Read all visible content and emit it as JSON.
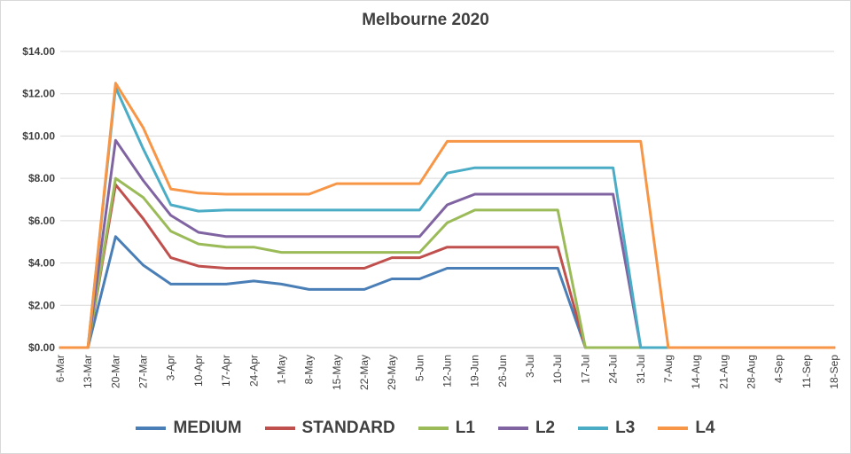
{
  "chart_data": {
    "type": "line",
    "title": "Melbourne 2020",
    "xlabel": "",
    "ylabel": "",
    "ylim": [
      0,
      14
    ],
    "yticks": [
      "$0.00",
      "$2.00",
      "$4.00",
      "$6.00",
      "$8.00",
      "$10.00",
      "$12.00",
      "$14.00"
    ],
    "ytick_values": [
      0,
      2,
      4,
      6,
      8,
      10,
      12,
      14
    ],
    "grid": true,
    "legend_position": "bottom",
    "categories": [
      "6-Mar",
      "13-Mar",
      "20-Mar",
      "27-Mar",
      "3-Apr",
      "10-Apr",
      "17-Apr",
      "24-Apr",
      "1-May",
      "8-May",
      "15-May",
      "22-May",
      "29-May",
      "5-Jun",
      "12-Jun",
      "19-Jun",
      "26-Jun",
      "3-Jul",
      "10-Jul",
      "17-Jul",
      "24-Jul",
      "31-Jul",
      "7-Aug",
      "14-Aug",
      "21-Aug",
      "28-Aug",
      "4-Sep",
      "11-Sep",
      "18-Sep"
    ],
    "series": [
      {
        "name": "MEDIUM",
        "color": "#4a7eb6",
        "values": [
          0,
          0,
          5.25,
          3.9,
          3.0,
          3.0,
          3.0,
          3.15,
          3.0,
          2.75,
          2.75,
          2.75,
          3.25,
          3.25,
          3.75,
          3.75,
          3.75,
          3.75,
          3.75,
          0,
          0,
          0,
          0,
          0,
          0,
          0,
          0,
          0,
          0
        ]
      },
      {
        "name": "STANDARD",
        "color": "#c0504d",
        "values": [
          0,
          0,
          7.7,
          6.1,
          4.25,
          3.85,
          3.75,
          3.75,
          3.75,
          3.75,
          3.75,
          3.75,
          4.25,
          4.25,
          4.75,
          4.75,
          4.75,
          4.75,
          4.75,
          0,
          0,
          0,
          0,
          0,
          0,
          0,
          0,
          0,
          0
        ]
      },
      {
        "name": "L1",
        "color": "#9bbb59",
        "values": [
          0,
          0,
          8.0,
          7.1,
          5.5,
          4.9,
          4.75,
          4.75,
          4.5,
          4.5,
          4.5,
          4.5,
          4.5,
          4.5,
          5.9,
          6.5,
          6.5,
          6.5,
          6.5,
          0,
          0,
          0,
          0,
          0,
          0,
          0,
          0,
          0,
          0
        ]
      },
      {
        "name": "L2",
        "color": "#8064a2",
        "values": [
          0,
          0,
          9.8,
          7.9,
          6.25,
          5.45,
          5.25,
          5.25,
          5.25,
          5.25,
          5.25,
          5.25,
          5.25,
          5.25,
          6.75,
          7.25,
          7.25,
          7.25,
          7.25,
          7.25,
          7.25,
          0,
          0,
          0,
          0,
          0,
          0,
          0,
          0
        ]
      },
      {
        "name": "L3",
        "color": "#4bacc6",
        "values": [
          0,
          0,
          12.3,
          9.4,
          6.75,
          6.45,
          6.5,
          6.5,
          6.5,
          6.5,
          6.5,
          6.5,
          6.5,
          6.5,
          8.25,
          8.5,
          8.5,
          8.5,
          8.5,
          8.5,
          8.5,
          0,
          0,
          0,
          0,
          0,
          0,
          0,
          0
        ]
      },
      {
        "name": "L4",
        "color": "#f79646",
        "values": [
          0,
          0,
          12.5,
          10.4,
          7.5,
          7.3,
          7.25,
          7.25,
          7.25,
          7.25,
          7.75,
          7.75,
          7.75,
          7.75,
          9.75,
          9.75,
          9.75,
          9.75,
          9.75,
          9.75,
          9.75,
          9.75,
          0,
          0,
          0,
          0,
          0,
          0,
          0
        ]
      }
    ]
  }
}
